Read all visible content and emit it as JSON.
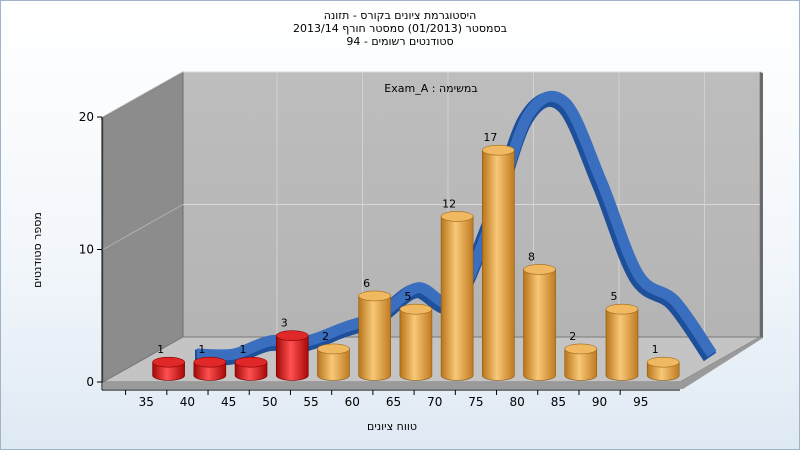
{
  "chart_data": {
    "type": "bar",
    "title_lines": [
      "היסטוגרמת ציונים בקורס - תזונה",
      "בסמסטר (01/2013) סמסטר חורף 2013/14",
      "סטודנטים רשומים - 94"
    ],
    "annotation": "במשימה : Exam_A",
    "xlabel": "טווח ציונים",
    "ylabel": "מספר סטודנטים",
    "categories": [
      "35",
      "40",
      "45",
      "50",
      "55",
      "60",
      "65",
      "70",
      "75",
      "80",
      "85",
      "90",
      "95"
    ],
    "values": [
      1,
      1,
      1,
      3,
      2,
      6,
      5,
      12,
      17,
      8,
      2,
      5,
      1
    ],
    "bar_colors": [
      "#d81818",
      "#d81818",
      "#d81818",
      "#d81818",
      "#e8a040",
      "#e8a040",
      "#e8a040",
      "#e8a040",
      "#e8a040",
      "#e8a040",
      "#e8a040",
      "#e8a040",
      "#e8a040"
    ],
    "curve_values": [
      0,
      0,
      1,
      1,
      2,
      3,
      5,
      4,
      10,
      18,
      19,
      13,
      6,
      4,
      0
    ],
    "curve_color": "#3a6fc0",
    "yticks": [
      0,
      10,
      20
    ],
    "ylim": [
      0,
      20
    ],
    "grid": true,
    "style": "3d"
  }
}
